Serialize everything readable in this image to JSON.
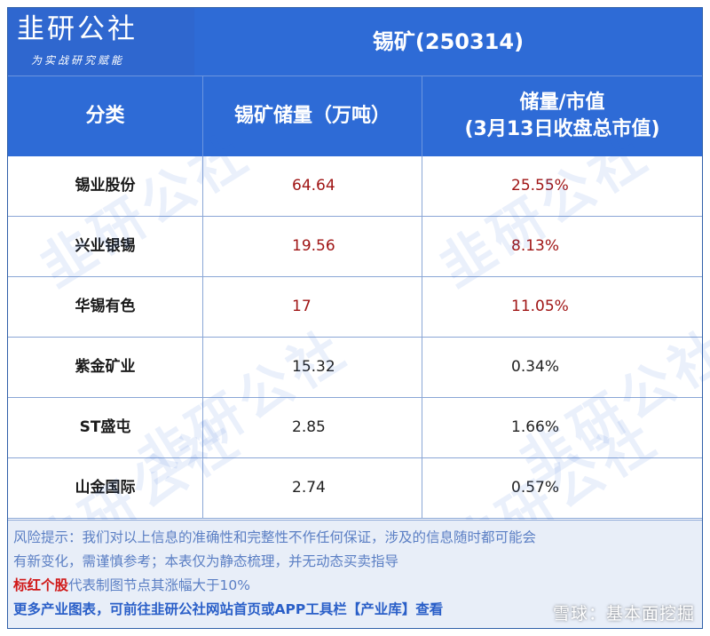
{
  "brand": {
    "name": "韭研公社",
    "slogan": "为实战研究赋能"
  },
  "title": "锡矿(250314)",
  "table": {
    "headers": [
      "分类",
      "锡矿储量（万吨）",
      "储量/市值\n(3月13日收盘总市值)"
    ],
    "rows": [
      {
        "name": "锡业股份",
        "reserve": "64.64",
        "ratio": "25.55%",
        "highlight": true
      },
      {
        "name": "兴业银锡",
        "reserve": "19.56",
        "ratio": "8.13%",
        "highlight": true
      },
      {
        "name": "华锡有色",
        "reserve": "17",
        "ratio": "11.05%",
        "highlight": true
      },
      {
        "name": "紫金矿业",
        "reserve": "15.32",
        "ratio": "0.34%",
        "highlight": false
      },
      {
        "name": "ST盛屯",
        "reserve": "2.85",
        "ratio": "1.66%",
        "highlight": false
      },
      {
        "name": "山金国际",
        "reserve": "2.74",
        "ratio": "0.57%",
        "highlight": false
      }
    ]
  },
  "footer": {
    "risk_line1": "风险提示：我们对以上信息的准确性和完整性不作任何保证，涉及的信息随时都可能会",
    "risk_line2": "有新变化，需谨慎参考；本表仅为静态梳理，并无动态买卖指导",
    "red_label": "标红个股",
    "red_note": "代表制图节点其涨幅大于10%",
    "more": "更多产业图表，可前往韭研公社网站首页或APP工具栏【产业库】查看"
  },
  "watermark": "韭研公社",
  "xueqiu_mark": "雪球：基本面挖掘",
  "colors": {
    "header_blue": "#2e6bd6",
    "highlight_red": "#a01515",
    "risk_text": "#5b7fc4",
    "footer_bg": "#e8eef8"
  }
}
